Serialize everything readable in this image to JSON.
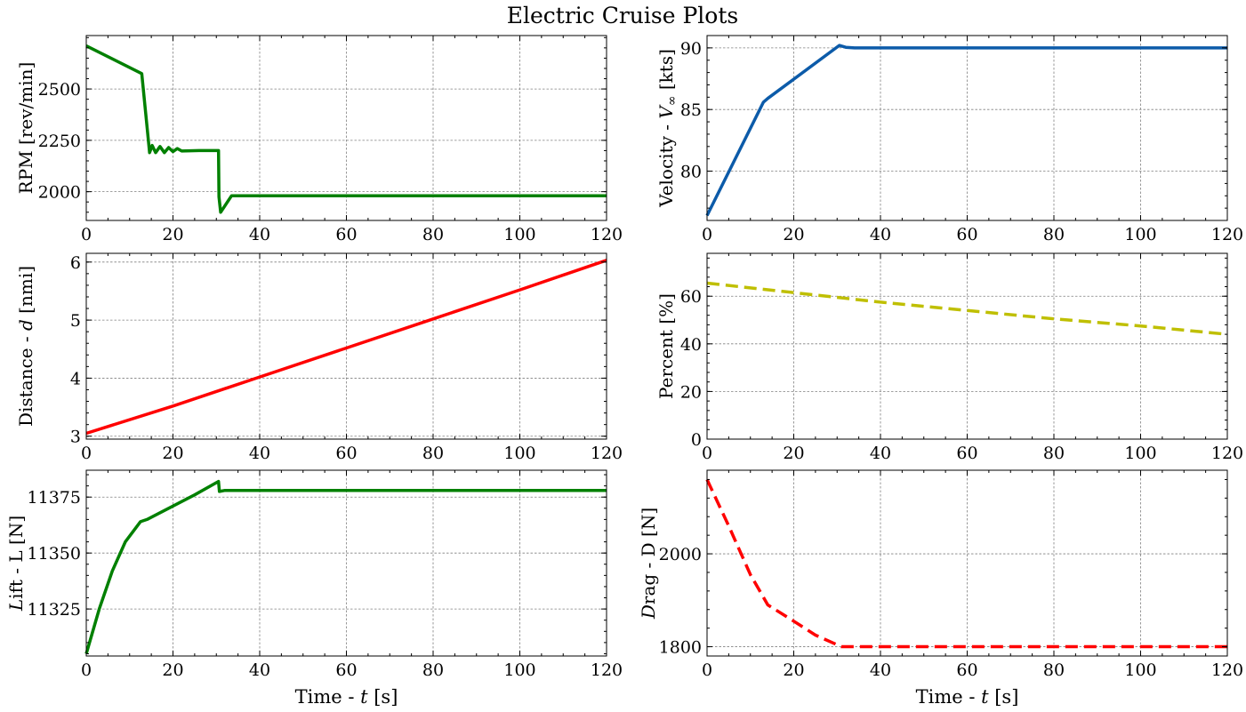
{
  "suptitle": "Electric Cruise Plots",
  "chart_data": [
    {
      "type": "line",
      "panel": "top-left",
      "ylabel": "RPM [rev/min]",
      "xlabel": "",
      "xlim": [
        0,
        120
      ],
      "ylim": [
        1860,
        2760
      ],
      "xticks": [
        0,
        20,
        40,
        60,
        80,
        100,
        120
      ],
      "yticks": [
        2000,
        2250,
        2500
      ],
      "series": [
        {
          "color": "#008000",
          "dash": "solid",
          "x": [
            0,
            12.8,
            14.6,
            15.2,
            16,
            17,
            18,
            19,
            20,
            21,
            22,
            26,
            30.5,
            30.6,
            31,
            33.5,
            120
          ],
          "y": [
            2710,
            2575,
            2190,
            2225,
            2190,
            2220,
            2190,
            2215,
            2195,
            2210,
            2198,
            2200,
            2200,
            1975,
            1900,
            1980,
            1980
          ]
        }
      ]
    },
    {
      "type": "line",
      "panel": "top-right",
      "ylabel": "Velocity - V∞ [kts]",
      "xlabel": "",
      "xlim": [
        0,
        120
      ],
      "ylim": [
        76,
        91
      ],
      "xticks": [
        0,
        20,
        40,
        60,
        80,
        100,
        120
      ],
      "yticks": [
        80,
        85,
        90
      ],
      "series": [
        {
          "color": "#0c5ba9",
          "dash": "solid",
          "x": [
            0,
            13,
            14,
            30.5,
            32,
            34,
            120
          ],
          "y": [
            76.4,
            85.6,
            85.9,
            90.2,
            90.05,
            90.0,
            90.0
          ]
        }
      ]
    },
    {
      "type": "line",
      "panel": "middle-left",
      "ylabel": "Distance - d [nmi]",
      "xlabel": "",
      "xlim": [
        0,
        120
      ],
      "ylim": [
        2.95,
        6.15
      ],
      "xticks": [
        0,
        20,
        40,
        60,
        80,
        100,
        120
      ],
      "yticks": [
        3,
        4,
        5,
        6
      ],
      "series": [
        {
          "color": "#ff0000",
          "dash": "solid",
          "x": [
            0,
            20,
            40,
            60,
            80,
            100,
            120
          ],
          "y": [
            3.05,
            3.52,
            4.02,
            4.52,
            5.02,
            5.52,
            6.03
          ]
        }
      ]
    },
    {
      "type": "line",
      "panel": "middle-right",
      "ylabel": "Percent [%]",
      "xlabel": "",
      "xlim": [
        0,
        120
      ],
      "ylim": [
        0,
        78
      ],
      "xticks": [
        0,
        20,
        40,
        60,
        80,
        100,
        120
      ],
      "yticks": [
        0,
        20,
        40,
        60
      ],
      "series": [
        {
          "color": "#bfbf00",
          "dash": "dashed",
          "x": [
            0,
            20,
            40,
            60,
            80,
            100,
            120
          ],
          "y": [
            65.5,
            61.5,
            57.5,
            54,
            50.5,
            47.5,
            44
          ]
        }
      ]
    },
    {
      "type": "line",
      "panel": "bottom-left",
      "ylabel": "Lift - L [N]",
      "xlabel": "Time - t [s]",
      "xlim": [
        0,
        120
      ],
      "ylim": [
        11304,
        11387
      ],
      "xticks": [
        0,
        20,
        40,
        60,
        80,
        100,
        120
      ],
      "yticks": [
        11325,
        11350,
        11375
      ],
      "series": [
        {
          "color": "#008000",
          "dash": "solid",
          "x": [
            0,
            3,
            6,
            9,
            12.5,
            14,
            20,
            25,
            30.5,
            30.7,
            32,
            34,
            120
          ],
          "y": [
            11305,
            11325,
            11342,
            11355,
            11364,
            11365,
            11371,
            11376,
            11382,
            11377.5,
            11378,
            11378,
            11378
          ]
        }
      ]
    },
    {
      "type": "line",
      "panel": "bottom-right",
      "ylabel": "Drag - D [N]",
      "xlabel": "Time - t [s]",
      "xlim": [
        0,
        120
      ],
      "ylim": [
        1780,
        2180
      ],
      "xticks": [
        0,
        20,
        40,
        60,
        80,
        100,
        120
      ],
      "yticks": [
        1800,
        2000
      ],
      "series": [
        {
          "color": "#ff0000",
          "dash": "dashed",
          "x": [
            0,
            5,
            10,
            14,
            20,
            25,
            31,
            40,
            120
          ],
          "y": [
            2160,
            2060,
            1955,
            1890,
            1855,
            1825,
            1800,
            1800,
            1800
          ]
        }
      ]
    }
  ]
}
